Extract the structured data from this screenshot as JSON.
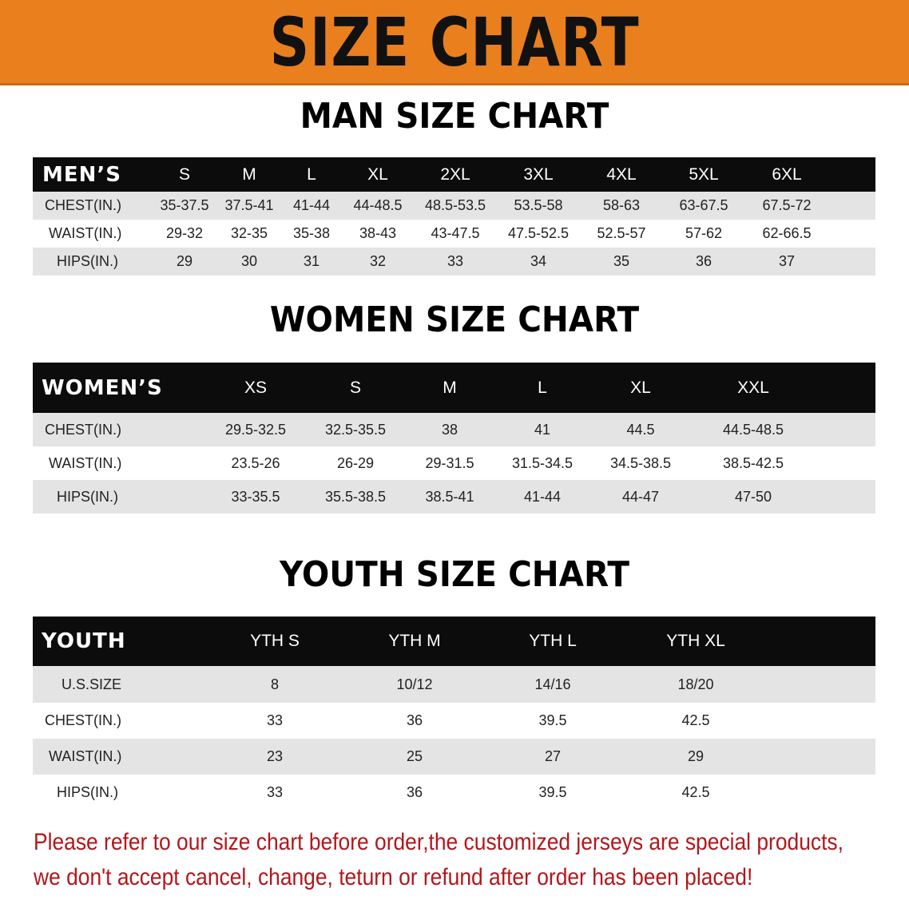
{
  "banner": {
    "title": "SIZE CHART",
    "color": "#ea7f1e"
  },
  "men": {
    "title": "MAN SIZE CHART",
    "header": [
      "MEN’S",
      "S",
      "M",
      "L",
      "XL",
      "2XL",
      "3XL",
      "4XL",
      "5XL",
      "6XL"
    ],
    "rows": [
      [
        "CHEST(IN.)",
        "35-37.5",
        "37.5-41",
        "41-44",
        "44-48.5",
        "48.5-53.5",
        "53.5-58",
        "58-63",
        "63-67.5",
        "67.5-72"
      ],
      [
        "WAIST(IN.)",
        "29-32",
        "32-35",
        "35-38",
        "38-43",
        "43-47.5",
        "47.5-52.5",
        "52.5-57",
        "57-62",
        "62-66.5"
      ],
      [
        "HIPS(IN.)",
        "29",
        "30",
        "31",
        "32",
        "33",
        "34",
        "35",
        "36",
        "37"
      ]
    ]
  },
  "women": {
    "title": "WOMEN SIZE CHART",
    "header": [
      "WOMEN’S",
      "XS",
      "S",
      "M",
      "L",
      "XL",
      "XXL"
    ],
    "rows": [
      [
        "CHEST(IN.)",
        "29.5-32.5",
        "32.5-35.5",
        "38",
        "41",
        "44.5",
        "44.5-48.5"
      ],
      [
        "WAIST(IN.)",
        "23.5-26",
        "26-29",
        "29-31.5",
        "31.5-34.5",
        "34.5-38.5",
        "38.5-42.5"
      ],
      [
        "HIPS(IN.)",
        "33-35.5",
        "35.5-38.5",
        "38.5-41",
        "41-44",
        "44-47",
        "47-50"
      ]
    ]
  },
  "youth": {
    "title": "YOUTH SIZE CHART",
    "header": [
      "YOUTH",
      "YTH S",
      "YTH M",
      "YTH L",
      "YTH XL"
    ],
    "rows": [
      [
        "U.S.SIZE",
        "8",
        "10/12",
        "14/16",
        "18/20"
      ],
      [
        "CHEST(IN.)",
        "33",
        "36",
        "39.5",
        "42.5"
      ],
      [
        "WAIST(IN.)",
        "23",
        "25",
        "27",
        "29"
      ],
      [
        "HIPS(IN.)",
        "33",
        "36",
        "39.5",
        "42.5"
      ]
    ]
  },
  "notice": {
    "line1": "Please refer to our size chart before order,the customized jerseys are special products,",
    "line2": "we don't accept cancel, change, teturn or refund after order has been placed!",
    "color": "#b3161b"
  }
}
